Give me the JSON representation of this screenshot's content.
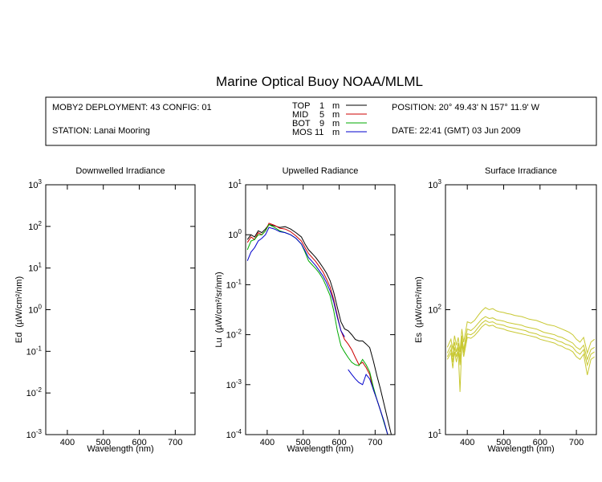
{
  "title": "Marine Optical Buoy NOAA/MLML",
  "info": {
    "deployment": "MOBY2 DEPLOYMENT: 43 CONFIG: 01",
    "station": "STATION: Lanai Mooring",
    "position": "POSITION: 20° 49.43' N   157° 11.9' W",
    "date": "DATE: 22:41 (GMT) 03 Jun 2009"
  },
  "legend": [
    {
      "name": "TOP",
      "depth": "1",
      "unit": "m",
      "color": "#000000"
    },
    {
      "name": "MID",
      "depth": "5",
      "unit": "m",
      "color": "#cc0000"
    },
    {
      "name": "BOT",
      "depth": "9",
      "unit": "m",
      "color": "#00aa00"
    },
    {
      "name": "MOS",
      "depth": "11",
      "unit": "m",
      "color": "#0000cc"
    }
  ],
  "chart_data": [
    {
      "type": "line",
      "title": "Downwelled Irradiance",
      "xlabel": "Wavelength (nm)",
      "ylabel_main": "Ed",
      "ylabel_unit": "(µW/cm²/nm)",
      "xlim": [
        340,
        755
      ],
      "ylim": [
        0.001,
        1000
      ],
      "yscale": "log",
      "x_ticks": [
        "400",
        "500",
        "600",
        "700"
      ],
      "y_ticks": [
        {
          "base": "10",
          "exp": "-3"
        },
        {
          "base": "10",
          "exp": "-2"
        },
        {
          "base": "10",
          "exp": "-1"
        },
        {
          "base": "10",
          "exp": "0"
        },
        {
          "base": "10",
          "exp": "1"
        },
        {
          "base": "10",
          "exp": "2"
        },
        {
          "base": "10",
          "exp": "3"
        }
      ],
      "series": []
    },
    {
      "type": "line",
      "title": "Upwelled Radiance",
      "xlabel": "Wavelength (nm)",
      "ylabel_main": "Lu",
      "ylabel_unit": "(µW/cm²/sr/nm)",
      "xlim": [
        340,
        755
      ],
      "ylim": [
        0.0001,
        10
      ],
      "yscale": "log",
      "x_ticks": [
        "400",
        "500",
        "600",
        "700"
      ],
      "y_ticks": [
        {
          "base": "10",
          "exp": "-4"
        },
        {
          "base": "10",
          "exp": "-3"
        },
        {
          "base": "10",
          "exp": "-2"
        },
        {
          "base": "10",
          "exp": "-1"
        },
        {
          "base": "10",
          "exp": "0"
        },
        {
          "base": "10",
          "exp": "1"
        }
      ],
      "series": [
        {
          "name": "TOP",
          "color": "#000000",
          "x": [
            345,
            355,
            365,
            375,
            385,
            395,
            405,
            420,
            435,
            450,
            465,
            480,
            495,
            505,
            515,
            525,
            535,
            545,
            555,
            565,
            575,
            585,
            595,
            605,
            615,
            625,
            635,
            645,
            655,
            665,
            675,
            685,
            695,
            705,
            715,
            725,
            735,
            745
          ],
          "y": [
            0.8,
            1.0,
            0.9,
            1.2,
            1.1,
            1.3,
            1.6,
            1.5,
            1.4,
            1.45,
            1.3,
            1.1,
            0.9,
            0.65,
            0.5,
            0.42,
            0.35,
            0.28,
            0.22,
            0.17,
            0.12,
            0.07,
            0.035,
            0.018,
            0.013,
            0.012,
            0.01,
            0.008,
            0.0075,
            0.0075,
            0.0065,
            0.0055,
            0.003,
            0.0015,
            0.0008,
            0.0004,
            0.0002,
            0.0001
          ]
        },
        {
          "name": "MID",
          "color": "#cc0000",
          "x": [
            345,
            355,
            365,
            375,
            385,
            395,
            405,
            420,
            435,
            450,
            465,
            480,
            495,
            505,
            515,
            525,
            535,
            545,
            555,
            565,
            575,
            585,
            595,
            605,
            615,
            625,
            635,
            645,
            655,
            665,
            675,
            685,
            695,
            705,
            715,
            725,
            735
          ],
          "y": [
            0.7,
            0.9,
            0.8,
            1.1,
            1.0,
            1.2,
            1.7,
            1.55,
            1.35,
            1.3,
            1.15,
            0.95,
            0.75,
            0.55,
            0.42,
            0.35,
            0.29,
            0.23,
            0.18,
            0.13,
            0.09,
            0.05,
            0.024,
            0.012,
            0.008,
            0.0065,
            0.005,
            0.0035,
            0.0025,
            0.0028,
            0.0022,
            0.0016,
            0.0008,
            0.0005,
            0.0003,
            0.00018,
            0.0001
          ]
        },
        {
          "name": "BOT",
          "color": "#00aa00",
          "x": [
            345,
            355,
            365,
            375,
            385,
            395,
            405,
            420,
            435,
            450,
            465,
            480,
            495,
            505,
            515,
            525,
            535,
            545,
            555,
            565,
            575,
            585,
            595,
            605,
            615,
            625,
            635,
            645,
            655,
            665,
            675,
            685,
            695,
            705,
            715,
            725,
            735
          ],
          "y": [
            0.5,
            0.75,
            0.8,
            1.0,
            1.0,
            1.2,
            1.6,
            1.4,
            1.2,
            1.1,
            1.0,
            0.85,
            0.65,
            0.45,
            0.3,
            0.25,
            0.21,
            0.17,
            0.13,
            0.09,
            0.06,
            0.03,
            0.012,
            0.006,
            0.0045,
            0.0035,
            0.0028,
            0.0025,
            0.0024,
            0.0032,
            0.0025,
            0.0018,
            0.0009,
            0.0005,
            0.0003,
            0.00017,
            0.0001
          ]
        },
        {
          "name": "MOS",
          "color": "#0000cc",
          "x": [
            345,
            355,
            365,
            375,
            385,
            395,
            405,
            420,
            435,
            450,
            465,
            480,
            495,
            505,
            515,
            525,
            535,
            545,
            555,
            565,
            575,
            585,
            595,
            605,
            615
          ],
          "y": [
            0.3,
            0.45,
            0.55,
            0.75,
            0.85,
            1.0,
            1.4,
            1.3,
            1.15,
            1.1,
            1.0,
            0.85,
            0.65,
            0.48,
            0.35,
            0.29,
            0.24,
            0.19,
            0.15,
            0.11,
            0.075,
            0.045,
            0.022,
            0.012,
            0.009
          ]
        },
        {
          "name": "MOS",
          "color": "#0000cc",
          "x": [
            625,
            635,
            645,
            655,
            665,
            675,
            685,
            695,
            705,
            715,
            725,
            735
          ],
          "y": [
            0.002,
            0.0016,
            0.0013,
            0.0011,
            0.001,
            0.0016,
            0.0013,
            0.0008,
            0.0005,
            0.0003,
            0.00018,
            0.0001
          ]
        }
      ]
    },
    {
      "type": "line",
      "title": "Surface Irradiance",
      "xlabel": "Wavelength (nm)",
      "ylabel_main": "Es",
      "ylabel_unit": "(µW/cm²/nm)",
      "xlim": [
        340,
        755
      ],
      "ylim": [
        10,
        1000
      ],
      "yscale": "log",
      "x_ticks": [
        "400",
        "500",
        "600",
        "700"
      ],
      "y_ticks": [
        {
          "base": "10",
          "exp": "1"
        },
        {
          "base": "10",
          "exp": "2"
        },
        {
          "base": "10",
          "exp": "3"
        }
      ],
      "series": [
        {
          "color": "#c8c832",
          "x": [
            345,
            355,
            360,
            365,
            370,
            375,
            380,
            385,
            390,
            395,
            400,
            410,
            420,
            430,
            440,
            450,
            460,
            470,
            480,
            490,
            500,
            510,
            520,
            530,
            540,
            550,
            560,
            570,
            580,
            590,
            600,
            610,
            620,
            630,
            640,
            650,
            660,
            670,
            680,
            690,
            700,
            710,
            720,
            730,
            740,
            750
          ],
          "y": [
            50,
            58,
            48,
            62,
            52,
            60,
            46,
            70,
            55,
            66,
            80,
            78,
            82,
            90,
            98,
            104,
            100,
            102,
            98,
            96,
            95,
            93,
            92,
            90,
            89,
            88,
            86,
            84,
            83,
            82,
            80,
            78,
            76,
            75,
            74,
            72,
            70,
            68,
            66,
            63,
            58,
            55,
            60,
            45,
            55,
            58
          ]
        },
        {
          "color": "#c8c832",
          "x": [
            345,
            355,
            360,
            365,
            370,
            375,
            380,
            385,
            390,
            395,
            400,
            410,
            420,
            430,
            440,
            450,
            460,
            470,
            480,
            490,
            500,
            510,
            520,
            530,
            540,
            550,
            560,
            570,
            580,
            590,
            600,
            610,
            620,
            630,
            640,
            650,
            660,
            670,
            680,
            690,
            700,
            710,
            720,
            730,
            740,
            750
          ],
          "y": [
            45,
            52,
            42,
            55,
            46,
            54,
            40,
            62,
            48,
            58,
            70,
            68,
            72,
            78,
            84,
            88,
            85,
            86,
            83,
            82,
            81,
            79,
            78,
            77,
            76,
            75,
            73,
            72,
            71,
            70,
            68,
            66,
            65,
            64,
            63,
            61,
            60,
            58,
            56,
            54,
            50,
            48,
            52,
            40,
            48,
            50
          ]
        },
        {
          "color": "#c8c832",
          "x": [
            345,
            355,
            360,
            365,
            370,
            375,
            380,
            385,
            390,
            395,
            400,
            410,
            420,
            430,
            440,
            450,
            460,
            470,
            480,
            490,
            500,
            510,
            520,
            530,
            540,
            550,
            560,
            570,
            580,
            590,
            600,
            610,
            620,
            630,
            640,
            650,
            660,
            670,
            680,
            690,
            700,
            710,
            720,
            730,
            740,
            750
          ],
          "y": [
            42,
            48,
            38,
            50,
            42,
            50,
            36,
            58,
            45,
            54,
            64,
            63,
            66,
            72,
            78,
            82,
            79,
            80,
            77,
            76,
            75,
            73,
            72,
            71,
            70,
            69,
            68,
            66,
            65,
            64,
            62,
            61,
            60,
            59,
            58,
            56,
            55,
            53,
            52,
            50,
            46,
            44,
            48,
            36,
            44,
            46
          ]
        },
        {
          "color": "#c8c832",
          "x": [
            345,
            355,
            360,
            365,
            370,
            375,
            380,
            385,
            390,
            395,
            400,
            410,
            420,
            430,
            440,
            450,
            460,
            470,
            480,
            490,
            500,
            510,
            520,
            530,
            540,
            550,
            560,
            570,
            580,
            590,
            600,
            610,
            620,
            630,
            640,
            650,
            660,
            670,
            680,
            690,
            700,
            710,
            720,
            730,
            740,
            750
          ],
          "y": [
            40,
            45,
            34,
            46,
            38,
            46,
            22,
            54,
            42,
            50,
            60,
            59,
            62,
            67,
            73,
            77,
            74,
            75,
            72,
            71,
            70,
            68,
            67,
            66,
            65,
            64,
            63,
            62,
            61,
            60,
            58,
            57,
            56,
            55,
            54,
            52,
            51,
            49,
            48,
            46,
            42,
            40,
            44,
            30,
            40,
            42
          ]
        }
      ]
    }
  ]
}
